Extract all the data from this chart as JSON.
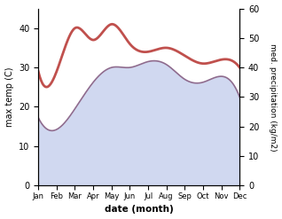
{
  "months": [
    "Jan",
    "Feb",
    "Mar",
    "Apr",
    "May",
    "Jun",
    "Jul",
    "Aug",
    "Sep",
    "Oct",
    "Nov",
    "Dec"
  ],
  "max_temp": [
    29,
    29,
    40,
    37,
    41,
    36,
    34,
    35,
    33,
    31,
    32,
    30
  ],
  "precipitation": [
    23,
    19,
    26,
    35,
    40,
    40,
    42,
    41,
    36,
    35,
    37,
    30
  ],
  "temp_color": "#c0504d",
  "precip_line_color": "#8e6b8e",
  "fill_color": "#b8c4e8",
  "fill_alpha": 0.65,
  "temp_ylim": [
    0,
    45
  ],
  "precip_ylim": [
    0,
    60
  ],
  "temp_yticks": [
    0,
    10,
    20,
    30,
    40
  ],
  "precip_yticks": [
    0,
    10,
    20,
    30,
    40,
    50,
    60
  ],
  "xlabel": "date (month)",
  "ylabel_left": "max temp (C)",
  "ylabel_right": "med. precipitation (kg/m2)"
}
